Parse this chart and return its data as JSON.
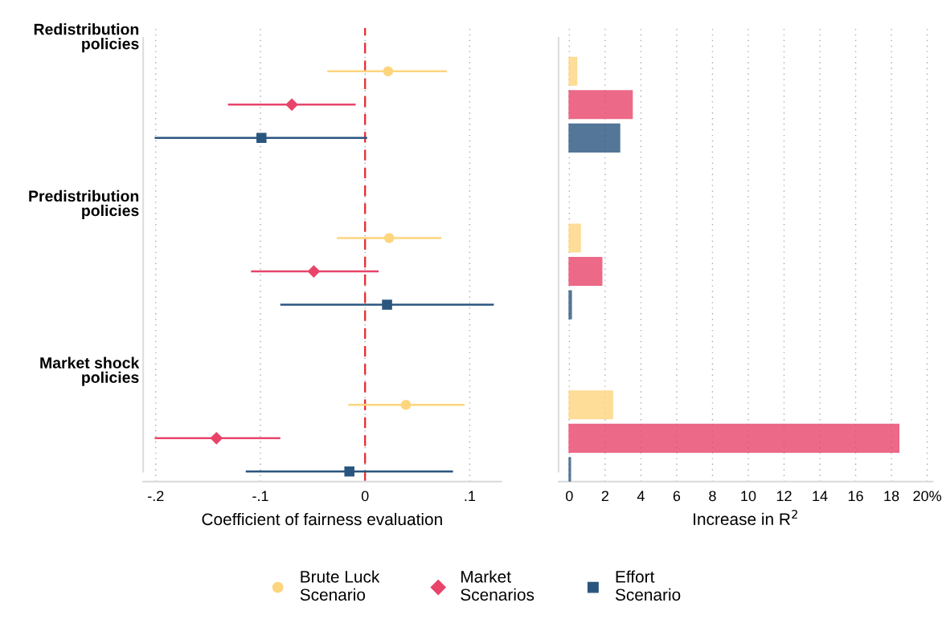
{
  "chart_data": [
    {
      "type": "scatter",
      "orientation": "horizontal",
      "xlabel": "Coefficient of fairness evaluation",
      "categories": [
        "Redistribution policies",
        null,
        null,
        null,
        null,
        "Predistribution policies",
        null,
        null,
        null,
        null,
        "Market shock policies",
        null,
        null,
        null
      ],
      "xlim": [
        -0.212,
        0.13
      ],
      "xticks": [
        {
          "value": -0.2,
          "label": "-.2"
        },
        {
          "value": -0.1,
          "label": "-.1"
        },
        0,
        {
          "value": 0.1,
          "label": ".1"
        }
      ],
      "grid": "x",
      "legend": "bottom",
      "ref_lines": [
        {
          "axis": "x",
          "value": 0,
          "color": "#e8262c",
          "line_style": "dashed"
        }
      ],
      "series": [
        {
          "name": "Brute Luck Scenario",
          "color": "#fdd57e",
          "marker": "circle",
          "values": [
            null,
            0.022,
            null,
            null,
            null,
            null,
            0.023,
            null,
            null,
            null,
            null,
            0.039,
            null,
            null
          ],
          "errors": [
            null,
            [
              -0.036,
              0.078
            ],
            null,
            null,
            null,
            null,
            [
              -0.027,
              0.073
            ],
            null,
            null,
            null,
            null,
            [
              -0.016,
              0.095
            ],
            null,
            null
          ]
        },
        {
          "name": "Market Scenarios",
          "color": "#e8446a",
          "marker": "diamond",
          "values": [
            null,
            null,
            -0.07,
            null,
            null,
            null,
            null,
            -0.049,
            null,
            null,
            null,
            null,
            -0.142,
            null
          ],
          "errors": [
            null,
            null,
            [
              -0.131,
              -0.009
            ],
            null,
            null,
            null,
            null,
            [
              -0.109,
              0.013
            ],
            null,
            null,
            null,
            null,
            [
              -0.201,
              -0.081
            ],
            null
          ]
        },
        {
          "name": "Effort Scenario",
          "color": "#2a557f",
          "marker": "square",
          "values": [
            null,
            null,
            null,
            -0.099,
            null,
            null,
            null,
            null,
            0.021,
            null,
            null,
            null,
            null,
            -0.015
          ],
          "errors": [
            null,
            null,
            null,
            [
              -0.201,
              0.002
            ],
            null,
            null,
            null,
            null,
            [
              -0.081,
              0.123
            ],
            null,
            null,
            null,
            null,
            [
              -0.114,
              0.084
            ]
          ]
        }
      ]
    },
    {
      "type": "bar",
      "orientation": "horizontal",
      "xlabel": "Increase in R$^{2}$",
      "categories": [
        null,
        null,
        null,
        null,
        null,
        null,
        null,
        null,
        null,
        null,
        null,
        null,
        null,
        null
      ],
      "tick_labels": "x",
      "xlim": [
        -0.6,
        20.3
      ],
      "xticks": [
        0,
        2,
        4,
        6,
        8,
        10,
        12,
        14,
        16,
        18,
        {
          "value": 20,
          "label": "20%"
        }
      ],
      "grid": "x",
      "series": [
        {
          "color": "#fdd57e",
          "values": [
            null,
            0.4,
            null,
            null,
            null,
            null,
            0.6,
            null,
            null,
            null,
            null,
            2.4,
            null,
            null
          ]
        },
        {
          "color": "#e8446a",
          "values": [
            null,
            null,
            3.5,
            null,
            null,
            null,
            null,
            1.8,
            null,
            null,
            null,
            null,
            18.4,
            null
          ]
        },
        {
          "color": "#2a557f",
          "values": [
            null,
            null,
            null,
            2.8,
            null,
            null,
            null,
            null,
            0.1,
            null,
            null,
            null,
            null,
            0.05
          ]
        }
      ]
    }
  ]
}
